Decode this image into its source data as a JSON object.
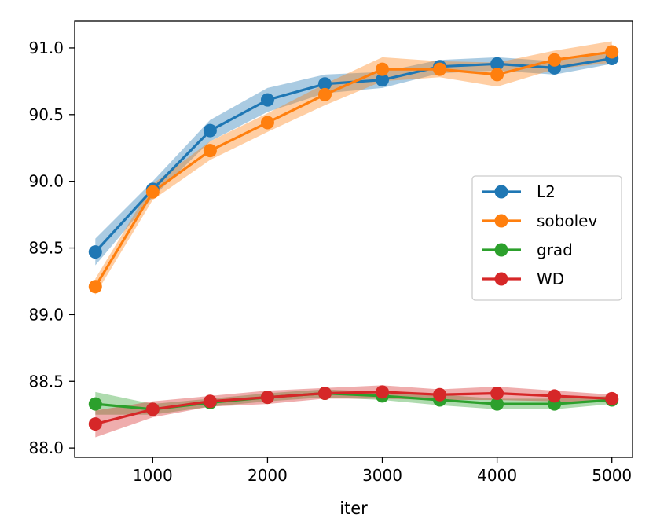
{
  "chart_data": {
    "type": "line",
    "title": "",
    "xlabel": "iter",
    "ylabel": "",
    "xlim": [
      320,
      5180
    ],
    "ylim": [
      87.93,
      91.2
    ],
    "xticks": [
      1000,
      2000,
      3000,
      4000,
      5000
    ],
    "xtick_labels": [
      "1000",
      "2000",
      "3000",
      "4000",
      "5000"
    ],
    "yticks": [
      88.0,
      88.5,
      89.0,
      89.5,
      90.0,
      90.5,
      91.0
    ],
    "ytick_labels": [
      "88.0",
      "88.5",
      "89.0",
      "89.5",
      "90.0",
      "90.5",
      "91.0"
    ],
    "grid": false,
    "legend_position": "center-right",
    "x": [
      500,
      1000,
      1500,
      2000,
      2500,
      3000,
      3500,
      4000,
      4500,
      5000
    ],
    "series": [
      {
        "name": "L2",
        "color": "#1f77b4",
        "values": [
          89.47,
          89.94,
          90.38,
          90.61,
          90.73,
          90.76,
          90.86,
          90.88,
          90.85,
          90.92
        ],
        "lower": [
          89.37,
          89.88,
          90.3,
          90.52,
          90.66,
          90.7,
          90.81,
          90.83,
          90.8,
          90.88
        ],
        "upper": [
          89.57,
          90.0,
          90.46,
          90.7,
          90.8,
          90.82,
          90.91,
          90.93,
          90.9,
          90.96
        ]
      },
      {
        "name": "sobolev",
        "color": "#ff7f0e",
        "values": [
          89.21,
          89.92,
          90.23,
          90.44,
          90.65,
          90.84,
          90.84,
          90.8,
          90.91,
          90.97
        ],
        "lower": [
          89.15,
          89.86,
          90.16,
          90.37,
          90.57,
          90.75,
          90.78,
          90.71,
          90.84,
          90.89
        ],
        "upper": [
          89.27,
          89.98,
          90.3,
          90.51,
          90.73,
          90.93,
          90.9,
          90.89,
          90.98,
          91.05
        ]
      },
      {
        "name": "grad",
        "color": "#2ca02c",
        "values": [
          88.33,
          88.29,
          88.34,
          88.38,
          88.41,
          88.39,
          88.36,
          88.33,
          88.33,
          88.36
        ],
        "lower": [
          88.25,
          88.25,
          88.31,
          88.35,
          88.38,
          88.36,
          88.32,
          88.29,
          88.29,
          88.33
        ],
        "upper": [
          88.42,
          88.33,
          88.37,
          88.41,
          88.44,
          88.42,
          88.4,
          88.37,
          88.37,
          88.39
        ]
      },
      {
        "name": "WD",
        "color": "#d62728",
        "values": [
          88.18,
          88.29,
          88.35,
          88.38,
          88.41,
          88.42,
          88.4,
          88.41,
          88.39,
          88.37
        ],
        "lower": [
          88.08,
          88.23,
          88.31,
          88.33,
          88.37,
          88.37,
          88.36,
          88.36,
          88.35,
          88.34
        ],
        "upper": [
          88.28,
          88.35,
          88.39,
          88.43,
          88.45,
          88.47,
          88.44,
          88.46,
          88.43,
          88.4
        ]
      }
    ]
  }
}
